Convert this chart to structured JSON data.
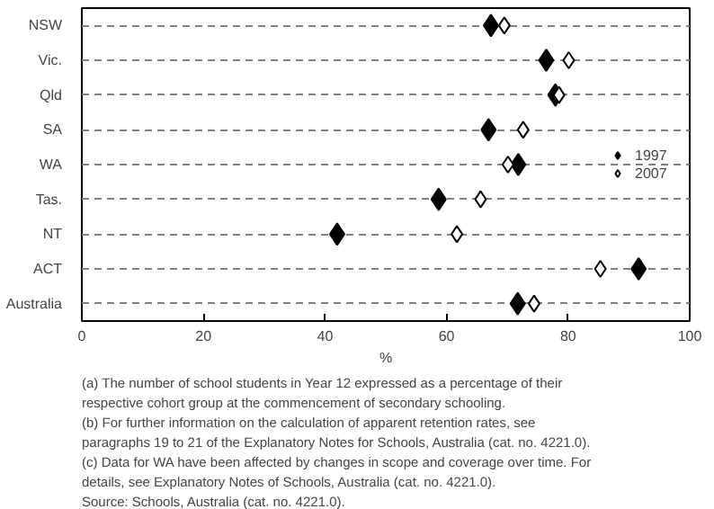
{
  "chart_data": {
    "type": "scatter",
    "xlabel": "%",
    "categories": [
      "NSW",
      "Vic.",
      "Qld",
      "SA",
      "WA",
      "Tas.",
      "NT",
      "ACT",
      "Australia"
    ],
    "series": [
      {
        "name": "1997",
        "color": "#000000",
        "marker": "diamond",
        "values": [
          67.3,
          76.4,
          77.9,
          66.9,
          71.8,
          58.7,
          42.0,
          91.6,
          71.7
        ]
      },
      {
        "name": "2007",
        "color": "#ffffff",
        "marker": "diamond",
        "values": [
          69.5,
          80.1,
          78.5,
          72.6,
          70.1,
          65.6,
          61.7,
          85.3,
          74.4
        ]
      }
    ],
    "orientation": "horizontal",
    "xlim": [
      0,
      100
    ],
    "xticks": [
      0,
      20,
      40,
      60,
      80,
      100
    ],
    "grid": "y",
    "legend": "right",
    "annotations": [
      "(a) The number of school students in Year 12 expressed as a percentage of their respective cohort group at the commencement of secondary schooling.",
      "(b) For further information on the calculation of apparent retention rates, see paragraphs 19 to 21 of the Explanatory Notes for Schools, Australia (cat. no. 4221.0).",
      "(c) Data for WA have been affected by changes in scope and coverage over time. For details, see Explanatory Notes of Schools, Australia (cat. no. 4221.0).",
      "Source: Schools, Australia (cat. no. 4221.0)."
    ]
  }
}
